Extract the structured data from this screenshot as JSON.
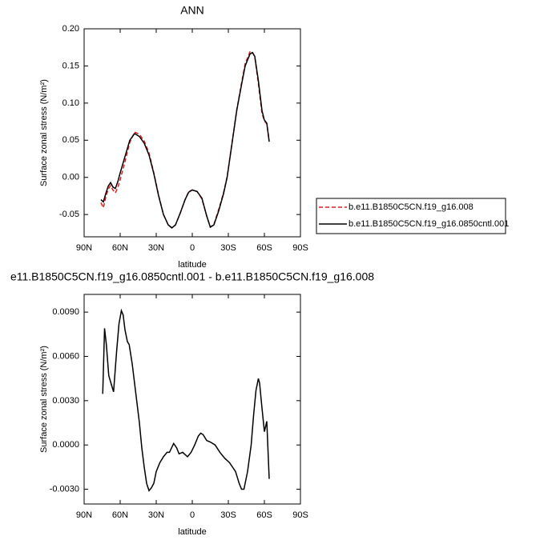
{
  "chart_data": [
    {
      "type": "line",
      "title": "ANN",
      "xlabel": "latitude",
      "ylabel": "Surface zonal stress (N/m²)",
      "x": [
        76,
        74,
        72,
        70,
        68,
        66,
        64,
        62,
        60,
        56,
        52,
        48,
        44,
        40,
        36,
        32,
        28,
        24,
        20,
        17,
        14,
        10,
        6,
        3,
        0,
        -4,
        -8,
        -12,
        -15,
        -18,
        -22,
        -26,
        -29,
        -33,
        -37,
        -41,
        -44,
        -48,
        -50,
        -52,
        -55,
        -58,
        -60,
        -62,
        -64
      ],
      "series": [
        {
          "name": "b.e11.B1850C5CN.f19_g16.008",
          "color": "#e31a1c",
          "dash": true,
          "values": [
            -0.034,
            -0.041,
            -0.027,
            -0.016,
            -0.011,
            -0.017,
            -0.021,
            -0.014,
            -0.003,
            0.021,
            0.047,
            0.061,
            0.058,
            0.049,
            0.033,
            0.006,
            -0.024,
            -0.05,
            -0.064,
            -0.068,
            -0.064,
            -0.048,
            -0.03,
            -0.019,
            -0.017,
            -0.019,
            -0.029,
            -0.052,
            -0.067,
            -0.063,
            -0.043,
            -0.021,
            0.001,
            0.046,
            0.091,
            0.127,
            0.153,
            0.169,
            0.169,
            0.162,
            0.126,
            0.086,
            0.076,
            0.072,
            0.05
          ]
        },
        {
          "name": "b.e11.B1850C5CN.f19_g16.0850cntl.001",
          "color": "#000000",
          "dash": false,
          "values": [
            -0.03,
            -0.033,
            -0.022,
            -0.012,
            -0.007,
            -0.013,
            -0.015,
            -0.006,
            0.006,
            0.028,
            0.05,
            0.059,
            0.055,
            0.046,
            0.03,
            0.005,
            -0.025,
            -0.05,
            -0.064,
            -0.068,
            -0.064,
            -0.048,
            -0.03,
            -0.02,
            -0.017,
            -0.019,
            -0.028,
            -0.052,
            -0.067,
            -0.064,
            -0.045,
            -0.022,
            0.0,
            0.045,
            0.09,
            0.125,
            0.15,
            0.166,
            0.168,
            0.163,
            0.13,
            0.09,
            0.077,
            0.073,
            0.048
          ]
        }
      ],
      "xlim": [
        90,
        -90
      ],
      "xticks": [
        {
          "value": 90,
          "label": "90N"
        },
        {
          "value": 60,
          "label": "60N"
        },
        {
          "value": 30,
          "label": "30N"
        },
        0,
        {
          "value": -30,
          "label": "30S"
        },
        {
          "value": -60,
          "label": "60S"
        },
        {
          "value": -90,
          "label": "90S"
        }
      ],
      "ylim": [
        -0.08,
        0.2
      ],
      "yticks": [
        {
          "value": 0.2,
          "label": "0.20"
        },
        0.15,
        {
          "value": 0.1,
          "label": "0.10"
        },
        0.05,
        {
          "value": 0,
          "label": "0.00"
        },
        -0.05
      ],
      "legend": "outside-right"
    },
    {
      "type": "line",
      "title": "e11.B1850C5CN.f19_g16.0850cntl.001 - b.e11.B1850C5CN.f19_g16.008",
      "xlabel": "latitude",
      "ylabel": "Surface zonal stress (N/m²)",
      "x": [
        75,
        74.5,
        73,
        71.5,
        69.5,
        67,
        65.5,
        63,
        61,
        59,
        57.5,
        56,
        54,
        52.5,
        50,
        47,
        44,
        42,
        40,
        38,
        36,
        34,
        32,
        30,
        27,
        24,
        21,
        19,
        15.5,
        13,
        11,
        8,
        4,
        1,
        -2,
        -5,
        -7,
        -9,
        -12,
        -15,
        -19,
        -23,
        -27,
        -31,
        -36,
        -39,
        -41,
        -43,
        -46,
        -49,
        -51,
        -53,
        -55,
        -56,
        -58,
        -60,
        -62,
        -64
      ],
      "color": "#000000",
      "values": [
        0.0035,
        0.0035,
        0.0079,
        0.0068,
        0.0047,
        0.004,
        0.0036,
        0.0063,
        0.0082,
        0.0091,
        0.0088,
        0.0078,
        0.007,
        0.0068,
        0.0055,
        0.0035,
        0.0015,
        -0.0002,
        -0.0015,
        -0.0026,
        -0.0031,
        -0.0029,
        -0.0026,
        -0.0018,
        -0.0012,
        -0.0008,
        -0.0005,
        -0.0005,
        0.0001,
        -0.0002,
        -0.0006,
        -0.0005,
        -0.0008,
        -0.0005,
        0.0,
        0.0006,
        0.0008,
        0.0007,
        0.0003,
        0.0002,
        0.0,
        -0.0005,
        -0.0009,
        -0.0012,
        -0.0018,
        -0.0026,
        -0.003,
        -0.003,
        -0.0018,
        0.0,
        0.002,
        0.0037,
        0.0045,
        0.0042,
        0.0025,
        0.0009,
        0.0016,
        -0.0023
      ],
      "xlim": [
        90,
        -90
      ],
      "xticks": [
        {
          "value": 90,
          "label": "90N"
        },
        {
          "value": 60,
          "label": "60N"
        },
        {
          "value": 30,
          "label": "30N"
        },
        0,
        {
          "value": -30,
          "label": "30S"
        },
        {
          "value": -60,
          "label": "60S"
        },
        {
          "value": -90,
          "label": "90S"
        }
      ],
      "ylim": [
        -0.004,
        0.0102
      ],
      "yticks": [
        {
          "value": 0.009,
          "label": "0.0090"
        },
        {
          "value": 0.006,
          "label": "0.0060"
        },
        {
          "value": 0.003,
          "label": "0.0030"
        },
        {
          "value": 0,
          "label": "0.0000"
        },
        {
          "value": -0.003,
          "label": "-0.0030"
        }
      ]
    }
  ]
}
